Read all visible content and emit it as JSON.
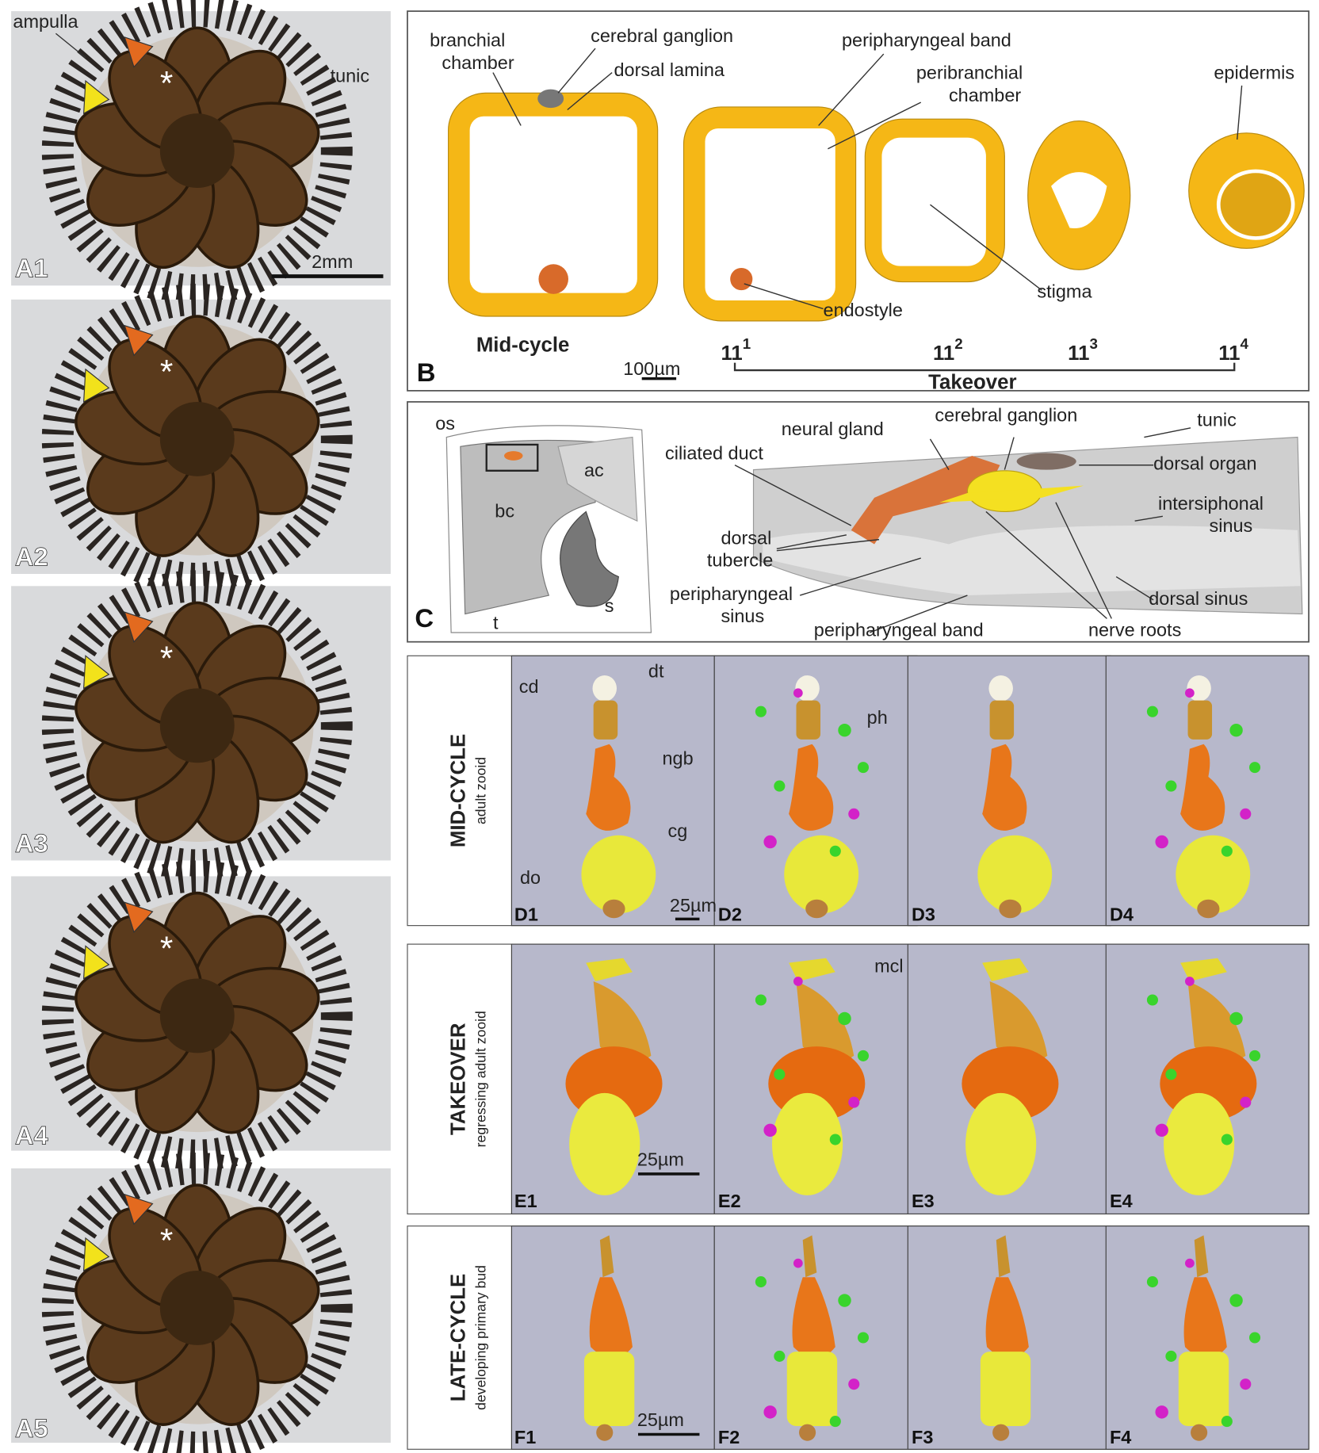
{
  "panel_a": {
    "labels": [
      "A1",
      "A2",
      "A3",
      "A4",
      "A5"
    ],
    "ampulla": "ampulla",
    "tunic": "tunic",
    "scale_bar": "2mm"
  },
  "panel_b": {
    "label": "B",
    "branchial_chamber": [
      "branchial",
      "chamber"
    ],
    "cerebral_ganglion": "cerebral ganglion",
    "dorsal_lamina": "dorsal lamina",
    "peripharyngeal_band": "peripharyngeal band",
    "peribranchial_chamber": [
      "peribranchial",
      "chamber"
    ],
    "epidermis": "epidermis",
    "stigma": "stigma",
    "endostyle": "endostyle",
    "mid_cycle": "Mid-cycle",
    "stages": [
      {
        "base": "11",
        "sup": "1"
      },
      {
        "base": "11",
        "sup": "2"
      },
      {
        "base": "11",
        "sup": "3"
      },
      {
        "base": "11",
        "sup": "4"
      }
    ],
    "takeover": "Takeover",
    "scale_bar": "100µm"
  },
  "panel_c": {
    "label": "C",
    "os": "os",
    "ac": "ac",
    "bc": "bc",
    "s": "s",
    "t": "t",
    "neural_gland": "neural gland",
    "cerebral_ganglion": "cerebral ganglion",
    "tunic": "tunic",
    "ciliated_duct": "ciliated duct",
    "dorsal_organ": "dorsal organ",
    "intersiphonal_sinus": [
      "intersiphonal",
      "sinus"
    ],
    "dorsal_tubercle": [
      "dorsal",
      "tubercle"
    ],
    "peripharyngeal_sinus": [
      "peripharyngeal",
      "sinus"
    ],
    "peripharyngeal_band": "peripharyngeal band",
    "nerve_roots": "nerve roots",
    "dorsal_sinus": "dorsal sinus"
  },
  "rows": [
    {
      "title": "MID-CYCLE",
      "subtitle": "adult zooid",
      "panels": [
        "D1",
        "D2",
        "D3",
        "D4"
      ],
      "scale_bar": "25µm",
      "annotations": [
        "cd",
        "dt",
        "ph",
        "ngb",
        "cg",
        "do"
      ]
    },
    {
      "title": "TAKEOVER",
      "subtitle": "regressing adult zooid",
      "panels": [
        "E1",
        "E2",
        "E3",
        "E4"
      ],
      "scale_bar": "25µm",
      "annotations": [
        "mcl"
      ]
    },
    {
      "title": "LATE-CYCLE",
      "subtitle": "developing primary bud",
      "panels": [
        "F1",
        "F2",
        "F3",
        "F4"
      ],
      "scale_bar": "25µm",
      "annotations": []
    }
  ]
}
